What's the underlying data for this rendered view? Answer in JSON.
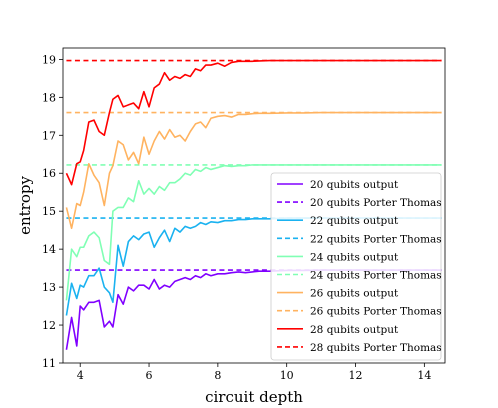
{
  "chart_data": {
    "type": "line",
    "title": "",
    "xlabel": "circuit depth",
    "ylabel": "entropy",
    "xlim": [
      3.5,
      14.6
    ],
    "ylim": [
      11.0,
      19.3
    ],
    "xticks": [
      4,
      6,
      8,
      10,
      12,
      14
    ],
    "yticks": [
      11,
      12,
      13,
      14,
      15,
      16,
      17,
      18,
      19
    ],
    "grid": false,
    "legend_position": "lower-right",
    "series": [
      {
        "name": "20 qubits output",
        "color": "#8000ff",
        "style": "solid",
        "x": [
          3.6,
          3.75,
          3.9,
          4.0,
          4.1,
          4.25,
          4.4,
          4.55,
          4.7,
          4.85,
          4.95,
          5.1,
          5.25,
          5.4,
          5.55,
          5.7,
          5.85,
          6.0,
          6.15,
          6.3,
          6.45,
          6.6,
          6.75,
          6.9,
          7.05,
          7.2,
          7.35,
          7.5,
          7.65,
          7.8,
          8.0,
          8.2,
          8.4,
          8.6,
          8.8,
          9.0,
          9.2,
          9.5,
          10.0,
          10.5,
          11.0,
          12.0,
          13.0,
          14.0,
          14.5
        ],
        "y": [
          11.35,
          12.2,
          11.45,
          12.5,
          12.4,
          12.6,
          12.6,
          12.65,
          11.95,
          12.1,
          11.95,
          12.8,
          12.55,
          13.0,
          12.9,
          13.05,
          13.05,
          12.95,
          13.2,
          12.95,
          13.05,
          13.0,
          13.15,
          13.2,
          13.25,
          13.2,
          13.3,
          13.25,
          13.35,
          13.3,
          13.35,
          13.35,
          13.38,
          13.4,
          13.38,
          13.4,
          13.42,
          13.42,
          13.44,
          13.44,
          13.45,
          13.45,
          13.45,
          13.45,
          13.45
        ]
      },
      {
        "name": "20 qubits Porter Thomas",
        "color": "#8000ff",
        "style": "dashed",
        "x": [
          3.6,
          14.5
        ],
        "y": [
          13.45,
          13.45
        ]
      },
      {
        "name": "22 qubits output",
        "color": "#1ab2f0",
        "style": "solid",
        "x": [
          3.6,
          3.75,
          3.9,
          4.0,
          4.1,
          4.25,
          4.4,
          4.55,
          4.7,
          4.85,
          4.95,
          5.1,
          5.25,
          5.4,
          5.55,
          5.7,
          5.85,
          6.0,
          6.15,
          6.3,
          6.45,
          6.6,
          6.75,
          6.9,
          7.05,
          7.2,
          7.35,
          7.5,
          7.65,
          7.8,
          8.0,
          8.2,
          8.4,
          8.6,
          8.8,
          9.0,
          9.2,
          9.5,
          10.0,
          10.5,
          11.0,
          12.0,
          13.0,
          14.0,
          14.5
        ],
        "y": [
          12.25,
          13.1,
          12.7,
          13.05,
          13.0,
          13.3,
          13.3,
          13.5,
          13.0,
          12.85,
          12.6,
          14.1,
          13.55,
          14.2,
          14.35,
          14.25,
          14.4,
          14.45,
          14.05,
          14.3,
          14.5,
          14.2,
          14.55,
          14.45,
          14.6,
          14.55,
          14.6,
          14.7,
          14.65,
          14.72,
          14.7,
          14.75,
          14.75,
          14.78,
          14.78,
          14.8,
          14.8,
          14.8,
          14.82,
          14.82,
          14.82,
          14.82,
          14.82,
          14.82,
          14.82
        ]
      },
      {
        "name": "22 qubits Porter Thomas",
        "color": "#1ab2f0",
        "style": "dashed",
        "x": [
          3.6,
          14.5
        ],
        "y": [
          14.82,
          14.82
        ]
      },
      {
        "name": "24 qubits output",
        "color": "#80ffb4",
        "style": "solid",
        "x": [
          3.6,
          3.75,
          3.9,
          4.0,
          4.1,
          4.25,
          4.4,
          4.55,
          4.7,
          4.85,
          4.95,
          5.1,
          5.25,
          5.4,
          5.55,
          5.7,
          5.85,
          6.0,
          6.15,
          6.3,
          6.45,
          6.6,
          6.75,
          6.9,
          7.05,
          7.2,
          7.35,
          7.5,
          7.65,
          7.8,
          8.0,
          8.2,
          8.4,
          8.6,
          8.8,
          9.0,
          9.2,
          9.5,
          10.0,
          10.5,
          11.0,
          12.0,
          13.0,
          14.0,
          14.5
        ],
        "y": [
          12.65,
          14.0,
          13.8,
          14.05,
          14.05,
          14.35,
          14.45,
          14.3,
          13.7,
          13.6,
          15.0,
          15.1,
          15.1,
          15.35,
          15.25,
          15.8,
          15.45,
          15.6,
          15.45,
          15.65,
          15.55,
          15.75,
          15.75,
          15.85,
          16.0,
          15.95,
          16.1,
          16.05,
          16.15,
          16.1,
          16.15,
          16.2,
          16.18,
          16.2,
          16.2,
          16.22,
          16.22,
          16.22,
          16.22,
          16.22,
          16.22,
          16.22,
          16.22,
          16.22,
          16.22
        ]
      },
      {
        "name": "24 qubits Porter Thomas",
        "color": "#80ffb4",
        "style": "dashed",
        "x": [
          3.6,
          14.5
        ],
        "y": [
          16.22,
          16.22
        ]
      },
      {
        "name": "26 qubits output",
        "color": "#ffb360",
        "style": "solid",
        "x": [
          3.6,
          3.75,
          3.9,
          4.0,
          4.1,
          4.25,
          4.4,
          4.55,
          4.7,
          4.85,
          4.95,
          5.1,
          5.25,
          5.4,
          5.55,
          5.7,
          5.85,
          6.0,
          6.15,
          6.3,
          6.45,
          6.6,
          6.75,
          6.9,
          7.05,
          7.2,
          7.35,
          7.5,
          7.65,
          7.8,
          8.0,
          8.2,
          8.4,
          8.6,
          8.8,
          9.0,
          9.2,
          9.5,
          10.0,
          10.5,
          11.0,
          12.0,
          13.0,
          14.0,
          14.5
        ],
        "y": [
          15.1,
          14.55,
          15.2,
          15.15,
          15.5,
          16.25,
          15.95,
          15.75,
          15.15,
          16.0,
          16.2,
          16.85,
          16.75,
          16.35,
          16.55,
          16.25,
          16.95,
          16.5,
          16.85,
          17.1,
          16.9,
          17.15,
          16.95,
          17.0,
          16.85,
          17.1,
          17.3,
          17.35,
          17.2,
          17.45,
          17.5,
          17.52,
          17.48,
          17.55,
          17.55,
          17.57,
          17.58,
          17.58,
          17.59,
          17.59,
          17.6,
          17.6,
          17.6,
          17.6,
          17.6
        ]
      },
      {
        "name": "26 qubits Porter Thomas",
        "color": "#ffb360",
        "style": "dashed",
        "x": [
          3.6,
          14.5
        ],
        "y": [
          17.6,
          17.6
        ]
      },
      {
        "name": "28 qubits output",
        "color": "#ff0000",
        "style": "solid",
        "x": [
          3.6,
          3.75,
          3.9,
          4.0,
          4.1,
          4.25,
          4.4,
          4.55,
          4.7,
          4.85,
          4.95,
          5.1,
          5.25,
          5.4,
          5.55,
          5.7,
          5.85,
          6.0,
          6.15,
          6.3,
          6.45,
          6.6,
          6.75,
          6.9,
          7.05,
          7.2,
          7.35,
          7.5,
          7.65,
          7.8,
          8.0,
          8.2,
          8.4,
          8.6,
          8.8,
          9.0,
          9.2,
          9.5,
          10.0,
          10.5,
          11.0,
          12.0,
          13.0,
          14.0,
          14.5
        ],
        "y": [
          16.0,
          15.7,
          16.25,
          16.3,
          16.6,
          17.35,
          17.4,
          17.1,
          17.0,
          17.6,
          17.95,
          18.05,
          17.75,
          17.8,
          17.85,
          17.7,
          18.15,
          17.75,
          18.25,
          18.35,
          18.65,
          18.45,
          18.55,
          18.5,
          18.6,
          18.55,
          18.75,
          18.7,
          18.85,
          18.85,
          18.9,
          18.82,
          18.92,
          18.95,
          18.95,
          18.95,
          18.96,
          18.97,
          18.97,
          18.97,
          18.97,
          18.97,
          18.97,
          18.97,
          18.97
        ]
      },
      {
        "name": "28 qubits Porter Thomas",
        "color": "#ff0000",
        "style": "dashed",
        "x": [
          3.6,
          14.5
        ],
        "y": [
          18.97,
          18.97
        ]
      }
    ]
  }
}
